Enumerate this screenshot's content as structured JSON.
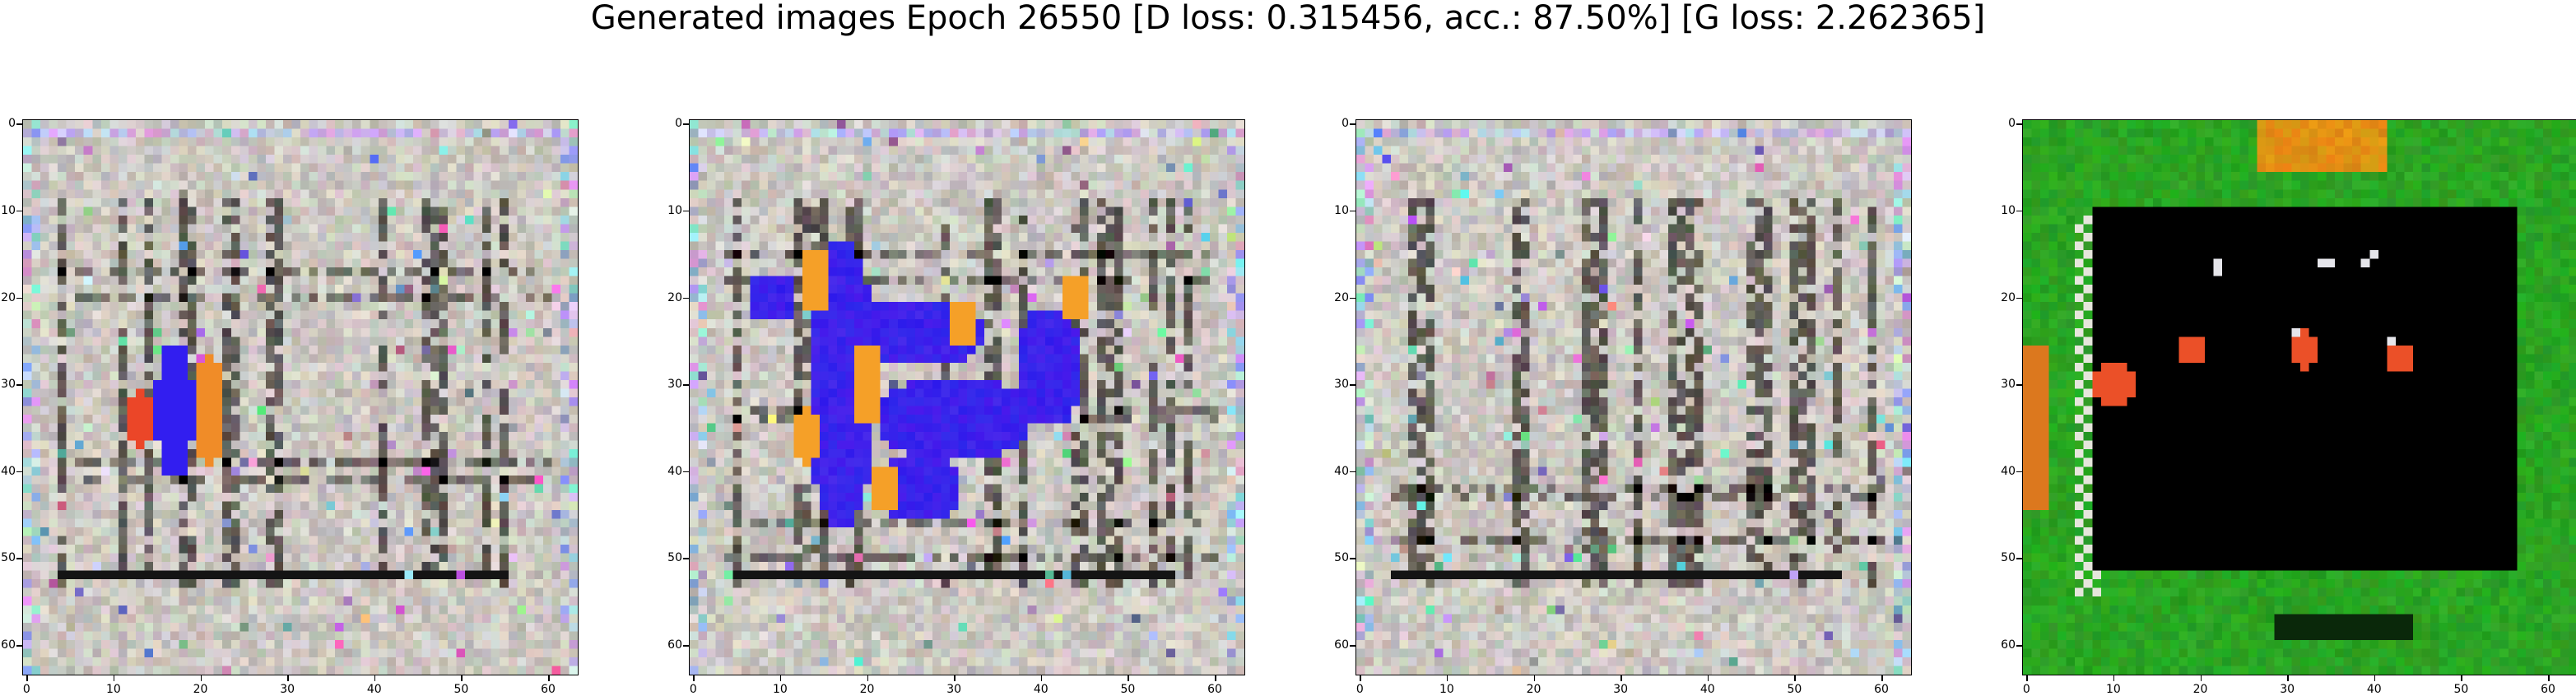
{
  "title": "Generated images Epoch 26550 [D loss: 0.315456, acc.: 87.50%] [G loss: 2.262365]",
  "axis_ticks": [
    "0",
    "10",
    "20",
    "30",
    "40",
    "50",
    "60"
  ],
  "panels": [
    {
      "name": "sample-1",
      "theme": "grey-grid",
      "blob": "blue-vertical"
    },
    {
      "name": "sample-2",
      "theme": "grey-grid",
      "blob": "blue-large"
    },
    {
      "name": "sample-3",
      "theme": "grey-grid",
      "blob": "none"
    },
    {
      "name": "sample-4",
      "theme": "green-black",
      "blob": "red-dots"
    }
  ],
  "colors": {
    "background_grey": "#cfc8c0",
    "blob_blue": "#2a1cf0",
    "blob_orange": "#f0a030",
    "frame_green": "#1f9a1f",
    "center_black": "#000000",
    "dot_red": "#e85020"
  }
}
